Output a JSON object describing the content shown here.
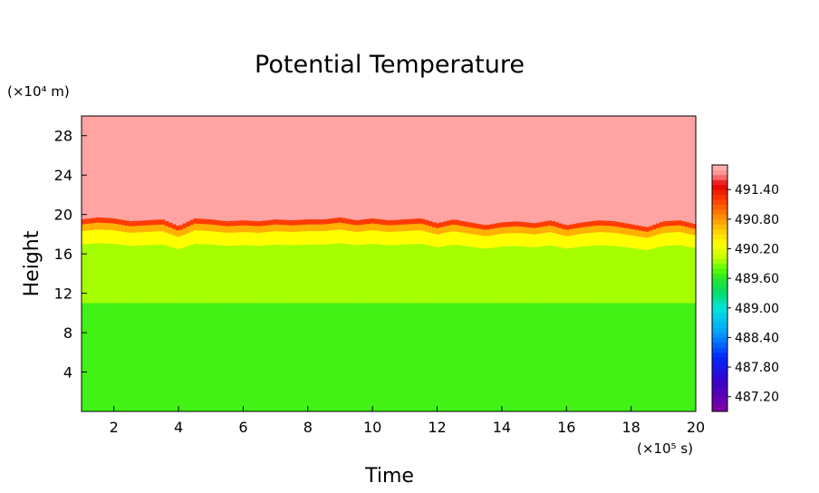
{
  "chart_data": {
    "type": "heatmap",
    "title": "Potential Temperature",
    "xlabel": "Time",
    "ylabel": "Height",
    "x_unit": "(×10⁵ s)",
    "y_unit": "(×10⁴ m)",
    "xlim": [
      1,
      20
    ],
    "ylim": [
      0,
      30
    ],
    "x_ticks": [
      {
        "value": 2,
        "label": "2"
      },
      {
        "value": 4,
        "label": "4"
      },
      {
        "value": 6,
        "label": "6"
      },
      {
        "value": 8,
        "label": "8"
      },
      {
        "value": 10,
        "label": "10"
      },
      {
        "value": 12,
        "label": "12"
      },
      {
        "value": 14,
        "label": "14"
      },
      {
        "value": 16,
        "label": "16"
      },
      {
        "value": 18,
        "label": "18"
      },
      {
        "value": 20,
        "label": "20"
      }
    ],
    "y_ticks": [
      {
        "value": 4,
        "label": "4"
      },
      {
        "value": 8,
        "label": "8"
      },
      {
        "value": 12,
        "label": "12"
      },
      {
        "value": 16,
        "label": "16"
      },
      {
        "value": 20,
        "label": "20"
      },
      {
        "value": 24,
        "label": "24"
      },
      {
        "value": 28,
        "label": "28"
      }
    ],
    "colorbar": {
      "range": [
        486.9,
        491.9
      ],
      "ticks": [
        {
          "value": 491.4,
          "label": "491.40"
        },
        {
          "value": 490.8,
          "label": "490.80"
        },
        {
          "value": 490.2,
          "label": "490.20"
        },
        {
          "value": 489.6,
          "label": "489.60"
        },
        {
          "value": 489.0,
          "label": "489.00"
        },
        {
          "value": 488.4,
          "label": "488.40"
        },
        {
          "value": 487.8,
          "label": "487.80"
        },
        {
          "value": 487.2,
          "label": "487.20"
        }
      ]
    },
    "field": {
      "lower_layer_top": 11,
      "lower_layer_value": 489.7,
      "upper_layer_value": 491.8,
      "mixed_layer_value_range": [
        489.95,
        491.2
      ],
      "boundary_height": [
        [
          1.0,
          19.5
        ],
        [
          1.5,
          19.7
        ],
        [
          2.0,
          19.6
        ],
        [
          2.5,
          19.3
        ],
        [
          3.0,
          19.4
        ],
        [
          3.5,
          19.5
        ],
        [
          4.0,
          18.8
        ],
        [
          4.5,
          19.6
        ],
        [
          5.0,
          19.5
        ],
        [
          5.5,
          19.3
        ],
        [
          6.0,
          19.4
        ],
        [
          6.5,
          19.3
        ],
        [
          7.0,
          19.5
        ],
        [
          7.5,
          19.4
        ],
        [
          8.0,
          19.5
        ],
        [
          8.5,
          19.5
        ],
        [
          9.0,
          19.7
        ],
        [
          9.5,
          19.4
        ],
        [
          10.0,
          19.6
        ],
        [
          10.5,
          19.4
        ],
        [
          11.0,
          19.5
        ],
        [
          11.5,
          19.6
        ],
        [
          12.0,
          19.1
        ],
        [
          12.5,
          19.5
        ],
        [
          13.0,
          19.2
        ],
        [
          13.5,
          18.9
        ],
        [
          14.0,
          19.2
        ],
        [
          14.5,
          19.3
        ],
        [
          15.0,
          19.1
        ],
        [
          15.5,
          19.4
        ],
        [
          16.0,
          18.9
        ],
        [
          16.5,
          19.2
        ],
        [
          17.0,
          19.4
        ],
        [
          17.5,
          19.3
        ],
        [
          18.0,
          19.0
        ],
        [
          18.5,
          18.7
        ],
        [
          19.0,
          19.3
        ],
        [
          19.5,
          19.4
        ],
        [
          20.0,
          19.0
        ]
      ]
    }
  }
}
